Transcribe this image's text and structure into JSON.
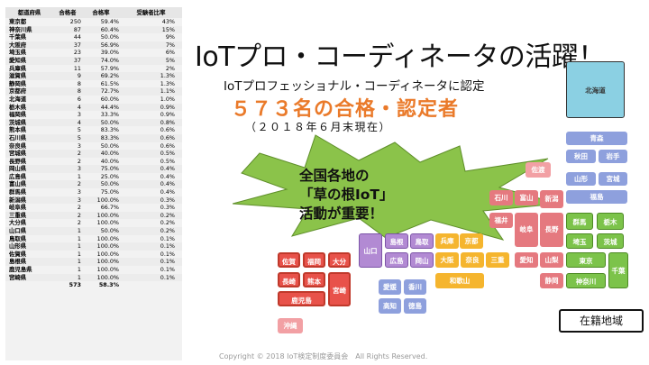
{
  "table": {
    "headers": [
      "都道府県",
      "合格者",
      "合格率",
      "受験者比率"
    ],
    "rows": [
      [
        "東京都",
        "250",
        "59.4%",
        "43%"
      ],
      [
        "神奈川県",
        "87",
        "60.4%",
        "15%"
      ],
      [
        "千葉県",
        "44",
        "50.0%",
        "9%"
      ],
      [
        "大阪府",
        "37",
        "56.9%",
        "7%"
      ],
      [
        "埼玉県",
        "23",
        "39.0%",
        "6%"
      ],
      [
        "愛知県",
        "37",
        "74.0%",
        "5%"
      ],
      [
        "兵庫県",
        "11",
        "57.9%",
        "2%"
      ],
      [
        "滋賀県",
        "9",
        "69.2%",
        "1.3%"
      ],
      [
        "静岡県",
        "8",
        "61.5%",
        "1.3%"
      ],
      [
        "京都府",
        "8",
        "72.7%",
        "1.1%"
      ],
      [
        "北海道",
        "6",
        "60.0%",
        "1.0%"
      ],
      [
        "栃木県",
        "4",
        "44.4%",
        "0.9%"
      ],
      [
        "福岡県",
        "3",
        "33.3%",
        "0.9%"
      ],
      [
        "茨城県",
        "4",
        "50.0%",
        "0.8%"
      ],
      [
        "熊本県",
        "5",
        "83.3%",
        "0.6%"
      ],
      [
        "石川県",
        "5",
        "83.3%",
        "0.6%"
      ],
      [
        "奈良県",
        "3",
        "50.0%",
        "0.6%"
      ],
      [
        "宮城県",
        "2",
        "40.0%",
        "0.5%"
      ],
      [
        "長野県",
        "2",
        "40.0%",
        "0.5%"
      ],
      [
        "岡山県",
        "3",
        "75.0%",
        "0.4%"
      ],
      [
        "広島県",
        "1",
        "25.0%",
        "0.4%"
      ],
      [
        "富山県",
        "2",
        "50.0%",
        "0.4%"
      ],
      [
        "群馬県",
        "3",
        "75.0%",
        "0.4%"
      ],
      [
        "新潟県",
        "3",
        "100.0%",
        "0.3%"
      ],
      [
        "岐阜県",
        "2",
        "66.7%",
        "0.3%"
      ],
      [
        "三重県",
        "2",
        "100.0%",
        "0.2%"
      ],
      [
        "大分県",
        "2",
        "100.0%",
        "0.2%"
      ],
      [
        "山口県",
        "1",
        "50.0%",
        "0.2%"
      ],
      [
        "鳥取県",
        "1",
        "100.0%",
        "0.1%"
      ],
      [
        "山形県",
        "1",
        "100.0%",
        "0.1%"
      ],
      [
        "佐賀県",
        "1",
        "100.0%",
        "0.1%"
      ],
      [
        "島根県",
        "1",
        "100.0%",
        "0.1%"
      ],
      [
        "鹿児島県",
        "1",
        "100.0%",
        "0.1%"
      ],
      [
        "宮崎県",
        "1",
        "100.0%",
        "0.1%"
      ]
    ],
    "total": [
      "",
      "573",
      "58.3%",
      ""
    ]
  },
  "title": "IoTプロ・コーディネータの活躍！",
  "subtitle": "IoTプロフェッショナル・コーディネータに認定",
  "count_text": "５７３名の合格・認定者",
  "as_of": "（２０１８年６月末現在）",
  "callout": [
    "全国各地の",
    "「草の根IoT」",
    "活動が重要！"
  ],
  "map": {
    "prefs": [
      {
        "name": "北海道",
        "cls": "tealbox"
      },
      {
        "name": "青森",
        "cls": "blu"
      },
      {
        "name": "秋田",
        "cls": "blu"
      },
      {
        "name": "岩手",
        "cls": "blu"
      },
      {
        "name": "山形",
        "cls": "blu"
      },
      {
        "name": "宮城",
        "cls": "blu"
      },
      {
        "name": "福島",
        "cls": "blu"
      },
      {
        "name": "佐渡",
        "cls": "pink"
      },
      {
        "name": "石川",
        "cls": "pink2"
      },
      {
        "name": "富山",
        "cls": "pink2"
      },
      {
        "name": "新潟",
        "cls": "pink2"
      },
      {
        "name": "福井",
        "cls": "pink2"
      },
      {
        "name": "岐阜",
        "cls": "pink2"
      },
      {
        "name": "長野",
        "cls": "pink2"
      },
      {
        "name": "群馬",
        "cls": "grn"
      },
      {
        "name": "栃木",
        "cls": "grn"
      },
      {
        "name": "茨城",
        "cls": "grn"
      },
      {
        "name": "埼玉",
        "cls": "grn"
      },
      {
        "name": "東京",
        "cls": "grn"
      },
      {
        "name": "千葉",
        "cls": "grn"
      },
      {
        "name": "山梨",
        "cls": "pink2"
      },
      {
        "name": "神奈川",
        "cls": "grn"
      },
      {
        "name": "静岡",
        "cls": "pink2"
      },
      {
        "name": "愛知",
        "cls": "pink2"
      },
      {
        "name": "三重",
        "cls": "yel"
      },
      {
        "name": "滋賀",
        "cls": "yel"
      },
      {
        "name": "京都",
        "cls": "yel"
      },
      {
        "name": "兵庫",
        "cls": "yel"
      },
      {
        "name": "大阪",
        "cls": "yel"
      },
      {
        "name": "奈良",
        "cls": "yel"
      },
      {
        "name": "和歌山",
        "cls": "yel"
      },
      {
        "name": "鳥取",
        "cls": "pur"
      },
      {
        "name": "島根",
        "cls": "pur"
      },
      {
        "name": "岡山",
        "cls": "pur"
      },
      {
        "name": "広島",
        "cls": "pur"
      },
      {
        "name": "山口",
        "cls": "pur"
      },
      {
        "name": "愛媛",
        "cls": "blu"
      },
      {
        "name": "香川",
        "cls": "blu"
      },
      {
        "name": "高知",
        "cls": "blu"
      },
      {
        "name": "徳島",
        "cls": "blu"
      },
      {
        "name": "佐賀",
        "cls": "red"
      },
      {
        "name": "福岡",
        "cls": "red"
      },
      {
        "name": "大分",
        "cls": "red"
      },
      {
        "name": "長崎",
        "cls": "red"
      },
      {
        "name": "熊本",
        "cls": "red"
      },
      {
        "name": "宮崎",
        "cls": "red"
      },
      {
        "name": "鹿児島",
        "cls": "red"
      },
      {
        "name": "沖縄",
        "cls": "pink"
      }
    ],
    "legend": "在籍地域"
  },
  "copyright": "Copyright © 2018 IoT検定制度委員会　All Rights Reserved."
}
